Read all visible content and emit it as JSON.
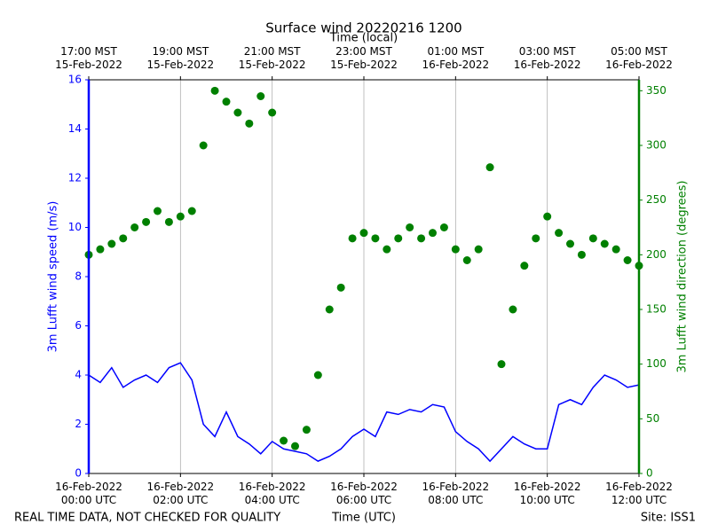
{
  "chart_data": {
    "type": "line+scatter",
    "title": "Surface wind 20220216 1200",
    "xlabel": "Time (UTC)",
    "x2label": "Time (local)",
    "ylabel": "3m Lufft wind speed (m/s)",
    "y2label": "3m Lufft wind direction (degrees)",
    "footer_left": "REAL TIME DATA, NOT CHECKED FOR QUALITY",
    "footer_right": "Site: ISS1",
    "grid": "x",
    "x": [
      "16-Feb-2022 00:00",
      "16-Feb-2022 00:15",
      "16-Feb-2022 00:30",
      "16-Feb-2022 00:45",
      "16-Feb-2022 01:00",
      "16-Feb-2022 01:15",
      "16-Feb-2022 01:30",
      "16-Feb-2022 01:45",
      "16-Feb-2022 02:00",
      "16-Feb-2022 02:15",
      "16-Feb-2022 02:30",
      "16-Feb-2022 02:45",
      "16-Feb-2022 03:00",
      "16-Feb-2022 03:15",
      "16-Feb-2022 03:30",
      "16-Feb-2022 03:45",
      "16-Feb-2022 04:00",
      "16-Feb-2022 04:15",
      "16-Feb-2022 04:30",
      "16-Feb-2022 04:45",
      "16-Feb-2022 05:00",
      "16-Feb-2022 05:15",
      "16-Feb-2022 05:30",
      "16-Feb-2022 05:45",
      "16-Feb-2022 06:00",
      "16-Feb-2022 06:15",
      "16-Feb-2022 06:30",
      "16-Feb-2022 06:45",
      "16-Feb-2022 07:00",
      "16-Feb-2022 07:15",
      "16-Feb-2022 07:30",
      "16-Feb-2022 07:45",
      "16-Feb-2022 08:00",
      "16-Feb-2022 08:15",
      "16-Feb-2022 08:30",
      "16-Feb-2022 08:45",
      "16-Feb-2022 09:00",
      "16-Feb-2022 09:15",
      "16-Feb-2022 09:30",
      "16-Feb-2022 09:45",
      "16-Feb-2022 10:00",
      "16-Feb-2022 10:15",
      "16-Feb-2022 10:30",
      "16-Feb-2022 10:45",
      "16-Feb-2022 11:00",
      "16-Feb-2022 11:15",
      "16-Feb-2022 11:30",
      "16-Feb-2022 11:45",
      "16-Feb-2022 12:00"
    ],
    "series": [
      {
        "name": "3m Lufft wind speed (m/s)",
        "kind": "line",
        "color": "#0000ff",
        "values": [
          4.0,
          3.7,
          4.3,
          3.5,
          3.8,
          4.0,
          3.7,
          4.3,
          4.5,
          3.8,
          2.0,
          1.5,
          2.5,
          1.5,
          1.2,
          0.8,
          1.3,
          1.0,
          0.9,
          0.8,
          0.5,
          0.7,
          1.0,
          1.5,
          1.8,
          1.5,
          2.5,
          2.4,
          2.6,
          2.5,
          2.8,
          2.7,
          1.7,
          1.3,
          1.0,
          0.5,
          1.0,
          1.5,
          1.2,
          1.0,
          1.0,
          2.8,
          3.0,
          2.8,
          3.5,
          4.0,
          3.8,
          3.5,
          3.6
        ]
      },
      {
        "name": "3m Lufft wind direction (degrees)",
        "kind": "scatter",
        "axis": "y2",
        "color": "#008000",
        "values": [
          200,
          205,
          210,
          215,
          225,
          230,
          240,
          230,
          235,
          240,
          300,
          350,
          340,
          330,
          320,
          345,
          330,
          30,
          25,
          40,
          90,
          150,
          170,
          215,
          220,
          215,
          205,
          215,
          225,
          215,
          220,
          225,
          205,
          195,
          205,
          280,
          100,
          150,
          190,
          215,
          235,
          220,
          210,
          200,
          215,
          210,
          205,
          195,
          190
        ]
      }
    ],
    "xlim": [
      "16-Feb-2022 00:00",
      "16-Feb-2022 12:00"
    ],
    "xticks": [
      {
        "value": "16-Feb-2022 00:00",
        "label": "16-Feb-2022\n00:00 UTC"
      },
      {
        "value": "16-Feb-2022 02:00",
        "label": "16-Feb-2022\n02:00 UTC"
      },
      {
        "value": "16-Feb-2022 04:00",
        "label": "16-Feb-2022\n04:00 UTC"
      },
      {
        "value": "16-Feb-2022 06:00",
        "label": "16-Feb-2022\n06:00 UTC"
      },
      {
        "value": "16-Feb-2022 08:00",
        "label": "16-Feb-2022\n08:00 UTC"
      },
      {
        "value": "16-Feb-2022 10:00",
        "label": "16-Feb-2022\n10:00 UTC"
      },
      {
        "value": "16-Feb-2022 12:00",
        "label": "16-Feb-2022\n12:00 UTC"
      }
    ],
    "x2ticks": [
      {
        "value": "16-Feb-2022 00:00",
        "label": "17:00 MST\n15-Feb-2022"
      },
      {
        "value": "16-Feb-2022 02:00",
        "label": "19:00 MST\n15-Feb-2022"
      },
      {
        "value": "16-Feb-2022 04:00",
        "label": "21:00 MST\n15-Feb-2022"
      },
      {
        "value": "16-Feb-2022 06:00",
        "label": "23:00 MST\n15-Feb-2022"
      },
      {
        "value": "16-Feb-2022 08:00",
        "label": "01:00 MST\n16-Feb-2022"
      },
      {
        "value": "16-Feb-2022 10:00",
        "label": "03:00 MST\n16-Feb-2022"
      },
      {
        "value": "16-Feb-2022 12:00",
        "label": "05:00 MST\n16-Feb-2022"
      }
    ],
    "ylim": [
      0,
      16
    ],
    "yticks": [
      0,
      2,
      4,
      6,
      8,
      10,
      12,
      14,
      16
    ],
    "y2lim": [
      0,
      360
    ],
    "y2ticks": [
      0,
      50,
      100,
      150,
      200,
      250,
      300,
      350
    ]
  }
}
